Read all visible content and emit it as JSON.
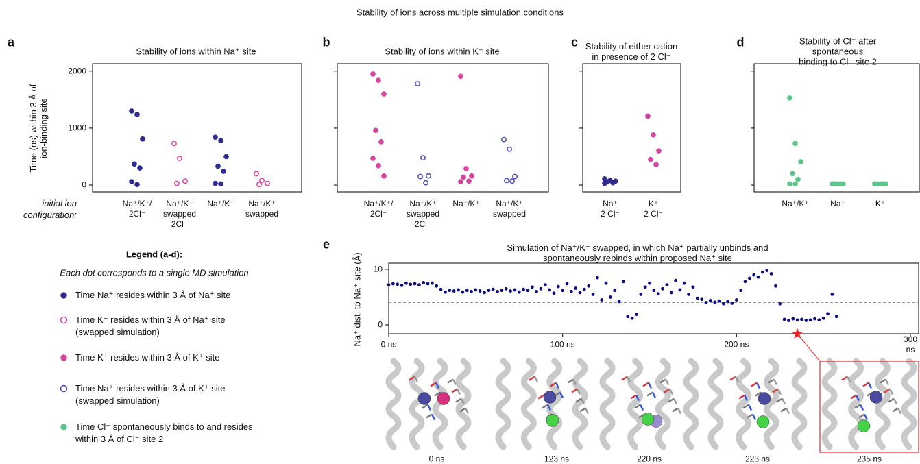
{
  "title": "Stability of ions across multiple simulation conditions",
  "x_caption": "initial ion\nconfiguration:",
  "chart_data": [
    {
      "type": "strip",
      "label": "a",
      "title": "Stability of ions within Na⁺ site",
      "ylabel": "Time (ns) within 3 Å of\nion-binding site",
      "categories": [
        "Na⁺/K⁺/\n2Cl⁻",
        "Na⁺/K⁺\nswapped\n2Cl⁻",
        "Na⁺/K⁺",
        "Na⁺/K⁺\nswapped"
      ],
      "ylim": [
        -120,
        2130
      ],
      "yticks": [
        0,
        1000,
        2000
      ],
      "ytick_labels": true,
      "series": [
        {
          "color": "#2e2d8f",
          "marker": "filled",
          "values": [
            [
              1300,
              1240,
              810,
              370,
              300,
              60,
              10
            ],
            null,
            [
              840,
              780,
              500,
              330,
              240,
              30,
              20
            ],
            null
          ]
        },
        {
          "color": "#d6449f",
          "marker": "open",
          "values": [
            null,
            [
              730,
              470,
              70,
              30
            ],
            null,
            [
              200,
              80,
              30,
              10
            ]
          ]
        }
      ]
    },
    {
      "type": "strip",
      "label": "b",
      "title": "Stability of ions within K⁺ site",
      "categories": [
        "Na⁺/K⁺/\n2Cl⁻",
        "Na⁺/K⁺\nswapped\n2Cl⁻",
        "Na⁺/K⁺",
        "Na⁺/K⁺\nswapped"
      ],
      "ylim": [
        -120,
        2130
      ],
      "yticks": [
        0,
        1000,
        2000
      ],
      "ytick_labels": false,
      "series": [
        {
          "color": "#d6449f",
          "marker": "filled",
          "values": [
            [
              1950,
              1840,
              1600,
              960,
              760,
              470,
              340,
              160
            ],
            null,
            [
              1910,
              290,
              160,
              140,
              70,
              60
            ],
            null
          ]
        },
        {
          "color": "#4b4bb8",
          "marker": "open",
          "values": [
            null,
            [
              1780,
              480,
              160,
              150,
              40
            ],
            null,
            [
              800,
              630,
              150,
              80,
              70
            ]
          ]
        }
      ]
    },
    {
      "type": "strip",
      "label": "c",
      "title": "Stability of either cation\nin presence of 2 Cl⁻",
      "categories": [
        "Na⁺\n2 Cl⁻",
        "K⁺\n2 Cl⁻"
      ],
      "ylim": [
        -120,
        2130
      ],
      "yticks": [
        0,
        1000,
        2000
      ],
      "ytick_labels": false,
      "series": [
        {
          "color": "#2e2d8f",
          "marker": "filled",
          "values": [
            [
              110,
              80,
              70,
              60,
              40,
              30
            ],
            null
          ]
        },
        {
          "color": "#d6449f",
          "marker": "filled",
          "values": [
            null,
            [
              1210,
              880,
              600,
              450,
              360
            ]
          ]
        }
      ]
    },
    {
      "type": "strip",
      "label": "d",
      "title": "Stability of Cl⁻ after spontaneous\nbinding to Cl⁻ site 2",
      "categories": [
        "Na⁺/K⁺",
        "Na⁺",
        "K⁺"
      ],
      "ylim": [
        -120,
        2130
      ],
      "yticks": [
        0,
        1000,
        2000
      ],
      "ytick_labels": false,
      "series": [
        {
          "color": "#5cc48a",
          "marker": "filled",
          "values": [
            [
              1530,
              730,
              410,
              200,
              100,
              20,
              20
            ],
            [
              20,
              20,
              20,
              20,
              20,
              20
            ],
            [
              20,
              20,
              20,
              20,
              20,
              20
            ]
          ]
        }
      ]
    },
    {
      "type": "scatter",
      "label": "e",
      "title": "Simulation of Na⁺/K⁺ swapped, in which Na⁺ partially unbinds and spontaneously rebinds within proposed Na⁺ site",
      "ylabel": "Na⁺ dist. to Na⁺ site (Å)",
      "color": "#0d0d80",
      "threshold": 4,
      "marker_x": 235,
      "marker_color": "#e8262a",
      "xlim": [
        0,
        300
      ],
      "xticks": [
        {
          "value": 0,
          "label": "0 ns"
        },
        {
          "value": 100,
          "label": "100 ns"
        },
        {
          "value": 200,
          "label": "200 ns"
        },
        {
          "value": 300,
          "label": "300 ns"
        }
      ],
      "ylim": [
        -1.6,
        11.1
      ],
      "yticks": [
        0,
        10
      ],
      "x": [
        0,
        2.5,
        5,
        7.5,
        10,
        12.5,
        15,
        17.5,
        20,
        22.5,
        25,
        27.5,
        30,
        32.5,
        35,
        37.5,
        40,
        42.5,
        45,
        47.5,
        50,
        52.5,
        55,
        57.5,
        60,
        62.5,
        65,
        67.5,
        70,
        72.5,
        75,
        77.5,
        80,
        82.5,
        85,
        87.5,
        90,
        92.5,
        95,
        97.5,
        100,
        102.5,
        105,
        107.5,
        110,
        112.5,
        115,
        117.5,
        120,
        122.5,
        125,
        127.5,
        130,
        132.5,
        135,
        137.5,
        140,
        142.5,
        145,
        147.5,
        150,
        152.5,
        155,
        157.5,
        160,
        162.5,
        165,
        167.5,
        170,
        172.5,
        175,
        177.5,
        180,
        182.5,
        185,
        187.5,
        190,
        192.5,
        195,
        197.5,
        200,
        202.5,
        205,
        207.5,
        210,
        212.5,
        215,
        217.5,
        220,
        222.5,
        225,
        227.5,
        230,
        232.5,
        235,
        237.5,
        240,
        242.5,
        245,
        247.5,
        250,
        252.5,
        255,
        257.5
      ],
      "values": [
        7.2,
        7.4,
        7.3,
        7.1,
        7.5,
        7.3,
        7.4,
        7.2,
        7.6,
        7.4,
        7.5,
        7.0,
        6.4,
        5.9,
        6.2,
        6.1,
        6.3,
        5.9,
        6.2,
        6.0,
        6.3,
        6.1,
        5.8,
        6.2,
        6.4,
        6.0,
        6.2,
        6.5,
        6.1,
        6.3,
        5.9,
        6.4,
        6.2,
        6.8,
        6.0,
        6.5,
        7.2,
        6.3,
        5.7,
        6.9,
        6.2,
        7.4,
        6.0,
        6.6,
        5.8,
        6.4,
        7.0,
        5.5,
        8.5,
        4.5,
        7.5,
        5.0,
        6.2,
        4.2,
        7.8,
        1.5,
        1.2,
        1.9,
        5.5,
        6.8,
        7.5,
        6.2,
        5.6,
        6.5,
        7.2,
        5.8,
        8.0,
        6.3,
        7.5,
        5.5,
        6.8,
        4.8,
        4.6,
        4.0,
        4.4,
        4.1,
        4.3,
        3.8,
        4.2,
        3.9,
        4.5,
        6.2,
        7.8,
        8.4,
        9.0,
        8.6,
        9.5,
        9.8,
        9.2,
        7.0,
        3.8,
        1.0,
        0.8,
        1.1,
        0.9,
        1.0,
        0.8,
        0.9,
        1.1,
        0.9,
        1.2,
        2.0,
        5.5,
        1.5
      ],
      "snapshots": [
        "0 ns",
        "123 ns",
        "220 ns",
        "223 ns",
        "235 ns"
      ]
    }
  ],
  "legend": {
    "title": "Legend (a-d):",
    "subtitle": "Each dot corresponds to a single MD simulation",
    "entries": [
      {
        "label": "Time Na⁺ resides within 3 Å of Na⁺ site",
        "color": "#2e2d8f",
        "marker": "filled"
      },
      {
        "label": "Time K⁺ resides within 3 Å of Na⁺ site\n(swapped simulation)",
        "color": "#d6449f",
        "marker": "open"
      },
      {
        "label": "Time K⁺ resides within 3 Å of K⁺ site",
        "color": "#d6449f",
        "marker": "filled"
      },
      {
        "label": "Time Na⁺ resides within 3 Å of K⁺ site\n(swapped simulation)",
        "color": "#4b4bb8",
        "marker": "open"
      },
      {
        "label": "Time Cl⁻ spontaneously binds to and resides\nwithin 3 Å of Cl⁻ site 2",
        "color": "#5cc48a",
        "marker": "filled"
      }
    ]
  }
}
